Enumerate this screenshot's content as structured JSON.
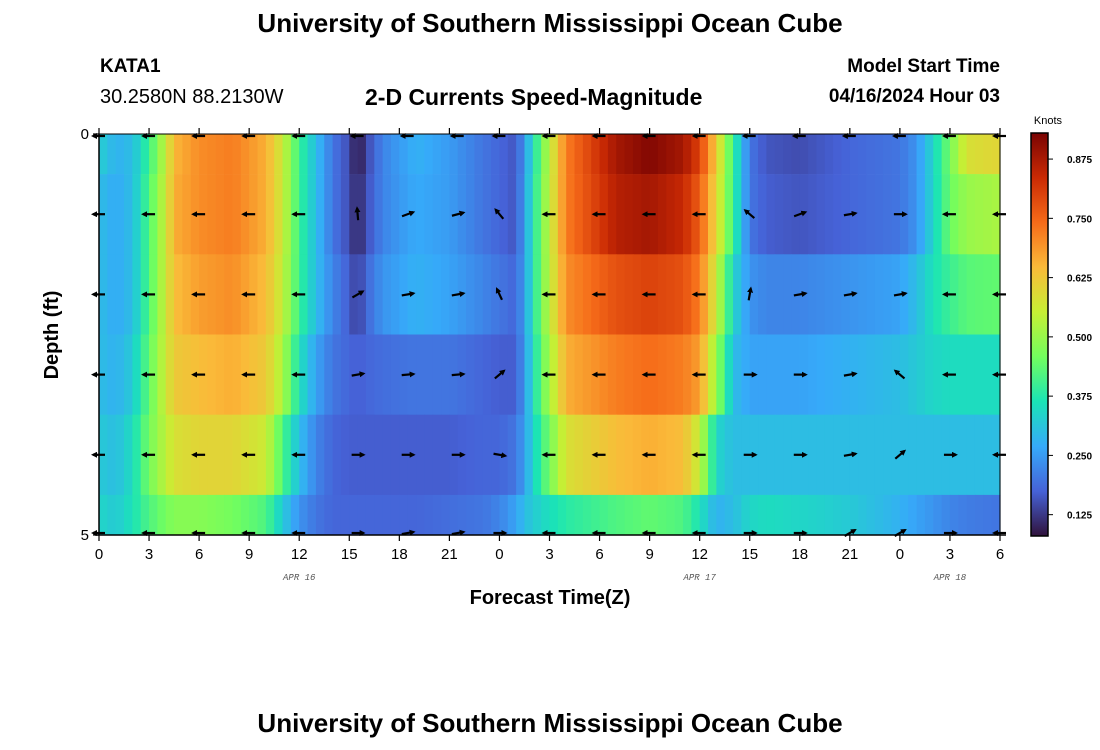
{
  "header": {
    "main_title": "University of Southern Mississippi Ocean Cube",
    "station_id": "KATA1",
    "station_coords": "30.2580N  88.2130W",
    "chart_title": "2-D Currents Speed-Magnitude",
    "model_start_label": "Model Start Time",
    "model_start_time": "04/16/2024 Hour 03"
  },
  "footer": {
    "bottom_title": "University of Southern Mississippi Ocean Cube"
  },
  "chart_data": {
    "type": "heatmap",
    "title": "2-D Currents Speed-Magnitude",
    "xlabel": "Forecast Time(Z)",
    "ylabel": "Depth (ft)",
    "x_ticks": [
      "0",
      "3",
      "6",
      "9",
      "12",
      "15",
      "18",
      "21",
      "0",
      "3",
      "6",
      "9",
      "12",
      "15",
      "18",
      "21",
      "0",
      "3",
      "6"
    ],
    "x_range_hours": [
      0,
      54
    ],
    "date_labels": [
      {
        "label": "APR 16",
        "hour": 12
      },
      {
        "label": "APR 17",
        "hour": 36
      },
      {
        "label": "APR 18",
        "hour": 51
      }
    ],
    "y_ticks": [
      "0",
      "5"
    ],
    "y_range": [
      0,
      5
    ],
    "colorbar": {
      "title": "Knots",
      "ticks": [
        "0.875",
        "0.750",
        "0.625",
        "0.500",
        "0.375",
        "0.250",
        "0.125"
      ],
      "tick_values": [
        0.875,
        0.75,
        0.625,
        0.5,
        0.375,
        0.25,
        0.125
      ],
      "range": [
        0.08,
        0.93
      ],
      "colors": [
        "#30123b",
        "#4662d7",
        "#36aaf9",
        "#1ae4b6",
        "#72fe5e",
        "#c7ef34",
        "#faba39",
        "#f66b19",
        "#ca2a04",
        "#7a0403"
      ]
    },
    "speed_keyframes": {
      "hours": [
        0,
        1,
        2,
        3,
        4,
        4.5,
        6,
        8,
        10,
        11,
        12,
        13,
        14,
        15,
        15.5,
        16,
        17,
        19,
        21,
        23,
        24,
        25,
        25.5,
        26.5,
        28,
        31,
        33,
        35,
        36,
        37,
        38,
        39,
        40,
        42,
        45,
        48,
        49,
        50,
        51,
        52,
        54
      ],
      "rows": [
        [
          0.33,
          0.28,
          0.3,
          0.4,
          0.55,
          0.65,
          0.7,
          0.72,
          0.66,
          0.56,
          0.4,
          0.3,
          0.2,
          0.15,
          0.08,
          0.14,
          0.22,
          0.28,
          0.25,
          0.2,
          0.18,
          0.16,
          0.25,
          0.45,
          0.72,
          0.88,
          0.92,
          0.88,
          0.8,
          0.62,
          0.4,
          0.2,
          0.16,
          0.15,
          0.18,
          0.2,
          0.24,
          0.34,
          0.46,
          0.58,
          0.6
        ],
        [
          0.3,
          0.27,
          0.3,
          0.42,
          0.56,
          0.66,
          0.7,
          0.72,
          0.66,
          0.56,
          0.4,
          0.3,
          0.2,
          0.15,
          0.1,
          0.15,
          0.22,
          0.27,
          0.25,
          0.2,
          0.18,
          0.16,
          0.26,
          0.46,
          0.72,
          0.86,
          0.88,
          0.84,
          0.76,
          0.6,
          0.4,
          0.2,
          0.17,
          0.16,
          0.18,
          0.2,
          0.24,
          0.34,
          0.45,
          0.5,
          0.52
        ],
        [
          0.3,
          0.27,
          0.3,
          0.42,
          0.56,
          0.64,
          0.68,
          0.7,
          0.64,
          0.55,
          0.4,
          0.3,
          0.22,
          0.17,
          0.13,
          0.18,
          0.24,
          0.28,
          0.26,
          0.22,
          0.2,
          0.18,
          0.26,
          0.46,
          0.7,
          0.78,
          0.8,
          0.78,
          0.72,
          0.56,
          0.34,
          0.24,
          0.22,
          0.22,
          0.24,
          0.26,
          0.3,
          0.36,
          0.4,
          0.43,
          0.44
        ],
        [
          0.3,
          0.28,
          0.32,
          0.44,
          0.56,
          0.62,
          0.64,
          0.66,
          0.62,
          0.52,
          0.36,
          0.26,
          0.2,
          0.18,
          0.17,
          0.18,
          0.19,
          0.2,
          0.2,
          0.18,
          0.17,
          0.17,
          0.25,
          0.44,
          0.66,
          0.72,
          0.74,
          0.72,
          0.68,
          0.5,
          0.3,
          0.26,
          0.26,
          0.26,
          0.28,
          0.3,
          0.32,
          0.34,
          0.35,
          0.35,
          0.35
        ],
        [
          0.32,
          0.3,
          0.35,
          0.46,
          0.54,
          0.58,
          0.6,
          0.6,
          0.56,
          0.42,
          0.3,
          0.22,
          0.18,
          0.17,
          0.17,
          0.17,
          0.17,
          0.17,
          0.17,
          0.18,
          0.18,
          0.2,
          0.26,
          0.4,
          0.58,
          0.64,
          0.66,
          0.64,
          0.55,
          0.34,
          0.3,
          0.3,
          0.3,
          0.3,
          0.3,
          0.3,
          0.3,
          0.3,
          0.3,
          0.3,
          0.3
        ],
        [
          0.34,
          0.32,
          0.36,
          0.42,
          0.46,
          0.48,
          0.48,
          0.46,
          0.42,
          0.32,
          0.24,
          0.2,
          0.18,
          0.18,
          0.18,
          0.18,
          0.18,
          0.18,
          0.19,
          0.2,
          0.22,
          0.26,
          0.3,
          0.34,
          0.38,
          0.42,
          0.44,
          0.42,
          0.36,
          0.28,
          0.3,
          0.34,
          0.35,
          0.34,
          0.32,
          0.28,
          0.26,
          0.24,
          0.22,
          0.21,
          0.2
        ]
      ]
    },
    "vector_hours": [
      0,
      3,
      6,
      9,
      12,
      15.5,
      18.5,
      21.5,
      24,
      27,
      30,
      33,
      36,
      39,
      42,
      45,
      48,
      51,
      54
    ],
    "vector_angles_deg": [
      [
        180,
        180,
        180,
        180,
        180,
        180,
        180,
        180,
        180,
        180,
        180,
        180,
        180,
        180,
        180,
        180,
        180,
        180,
        180
      ],
      [
        180,
        180,
        180,
        180,
        180,
        95,
        20,
        15,
        130,
        180,
        180,
        180,
        180,
        140,
        20,
        10,
        0,
        180,
        180
      ],
      [
        180,
        180,
        180,
        180,
        180,
        30,
        10,
        10,
        115,
        180,
        180,
        180,
        180,
        80,
        10,
        10,
        10,
        180,
        180
      ],
      [
        180,
        180,
        180,
        180,
        180,
        10,
        5,
        5,
        40,
        180,
        180,
        180,
        180,
        0,
        0,
        10,
        140,
        180,
        180
      ],
      [
        180,
        180,
        180,
        180,
        180,
        0,
        0,
        0,
        350,
        180,
        180,
        180,
        180,
        0,
        0,
        10,
        40,
        0,
        180
      ],
      [
        180,
        180,
        180,
        180,
        180,
        0,
        10,
        10,
        0,
        180,
        180,
        180,
        180,
        0,
        0,
        30,
        30,
        0,
        180
      ]
    ]
  }
}
